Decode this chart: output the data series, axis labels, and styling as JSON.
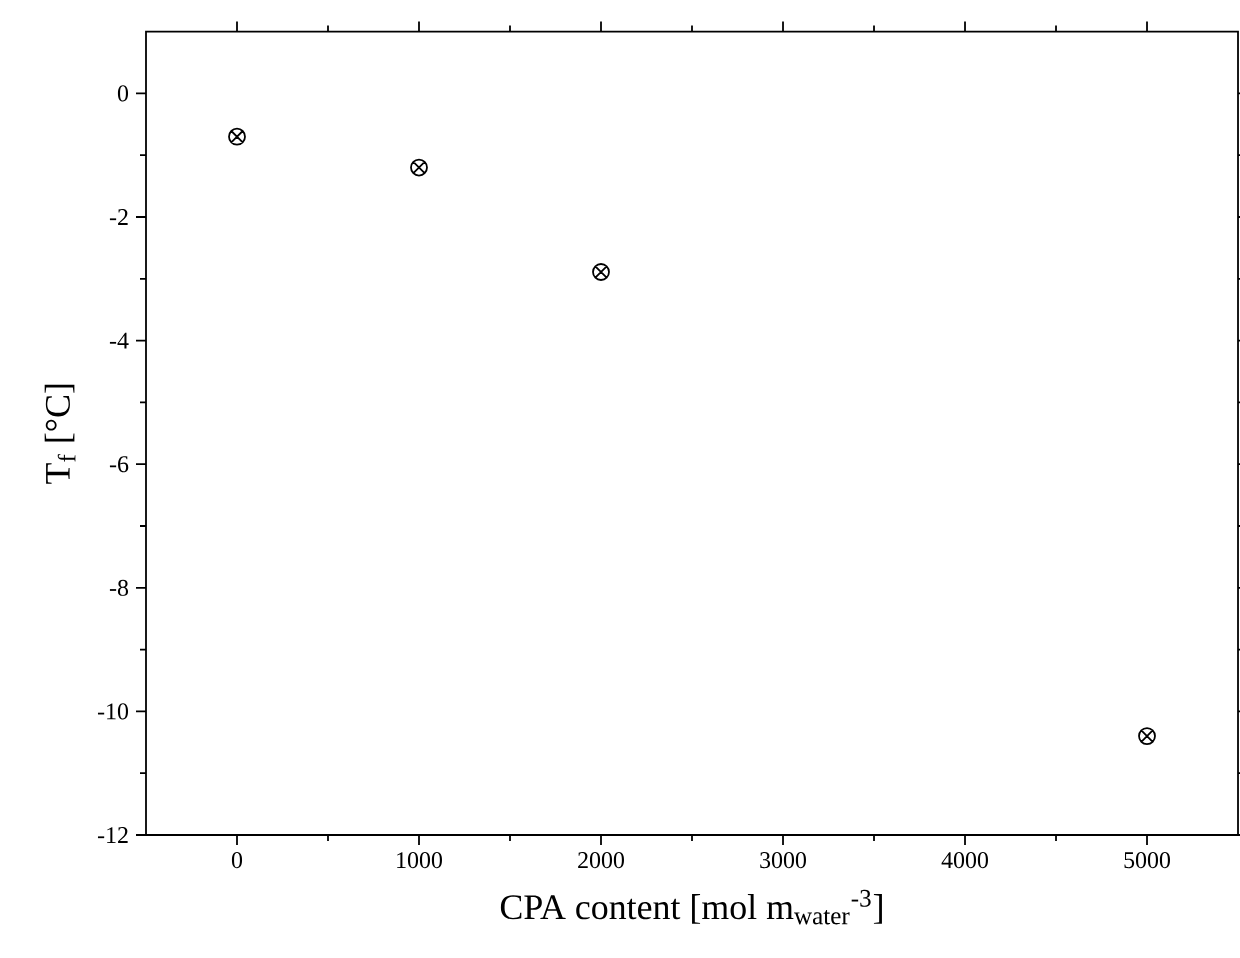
{
  "chart_data": {
    "type": "scatter",
    "xlabel": "CPA content [mol m$_{water}$$^{-3}$]",
    "ylabel": "T$_{f}$ [°C]",
    "x": [
      0,
      1000,
      2000,
      5000
    ],
    "values": [
      -0.7,
      -1.2,
      -2.89,
      -10.4
    ],
    "color": "#000000",
    "marker": "cross",
    "xlim": [
      -500,
      5500
    ],
    "ylim": [
      -12,
      1
    ],
    "xticks": [
      0,
      1000,
      2000,
      3000,
      4000,
      5000
    ],
    "yticks": [
      -12,
      -10,
      -8,
      -6,
      -4,
      -2,
      0
    ],
    "grid": false
  }
}
